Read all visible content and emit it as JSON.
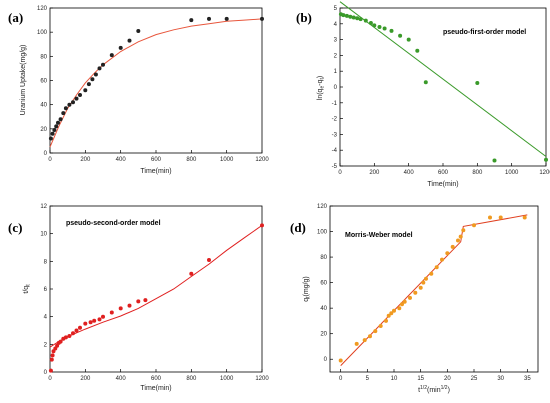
{
  "chart_data": [
    {
      "panel_label": "(a)",
      "type": "scatter",
      "xlabel": "Time(min)",
      "ylabel": "Uranium Uptake(mg/g)",
      "xlim": [
        0,
        1200
      ],
      "ylim": [
        0,
        120
      ],
      "xticks": [
        "0",
        "200",
        "400",
        "600",
        "800",
        "1000",
        "1200"
      ],
      "yticks": [
        "0",
        "20",
        "40",
        "60",
        "80",
        "100",
        "120"
      ],
      "model_label": "",
      "point_color": "#222222",
      "line_color": "#e8563c",
      "points": [
        [
          5,
          12
        ],
        [
          15,
          16
        ],
        [
          25,
          19
        ],
        [
          35,
          22
        ],
        [
          45,
          25
        ],
        [
          60,
          28
        ],
        [
          75,
          33
        ],
        [
          90,
          37
        ],
        [
          110,
          40
        ],
        [
          130,
          42
        ],
        [
          150,
          45
        ],
        [
          170,
          48
        ],
        [
          200,
          52
        ],
        [
          220,
          57
        ],
        [
          240,
          61
        ],
        [
          260,
          65
        ],
        [
          280,
          70
        ],
        [
          300,
          73
        ],
        [
          350,
          81
        ],
        [
          400,
          87
        ],
        [
          450,
          93
        ],
        [
          500,
          101
        ],
        [
          800,
          110
        ],
        [
          900,
          111
        ],
        [
          1000,
          111
        ],
        [
          1200,
          111
        ]
      ],
      "fit": [
        [
          0,
          5
        ],
        [
          50,
          22
        ],
        [
          100,
          37
        ],
        [
          150,
          48
        ],
        [
          200,
          58
        ],
        [
          250,
          66
        ],
        [
          300,
          73
        ],
        [
          400,
          84
        ],
        [
          500,
          92
        ],
        [
          600,
          98
        ],
        [
          700,
          102
        ],
        [
          800,
          105
        ],
        [
          900,
          107
        ],
        [
          1000,
          109
        ],
        [
          1100,
          110
        ],
        [
          1200,
          111
        ]
      ]
    },
    {
      "panel_label": "(b)",
      "type": "scatter",
      "xlabel": "Time(min)",
      "ylabel": "ln(qe-qt)",
      "xlim": [
        0,
        1200
      ],
      "ylim": [
        -5,
        5
      ],
      "xticks": [
        "0",
        "200",
        "400",
        "600",
        "800",
        "1000",
        "1200"
      ],
      "yticks": [
        "5",
        "4",
        "3",
        "2",
        "1",
        "0",
        "-1",
        "-2",
        "-3",
        "-4",
        "-5"
      ],
      "model_label": "pseudo-first-order model",
      "point_color": "#3a9a2a",
      "line_color": "#3a9a2a",
      "points": [
        [
          5,
          4.6
        ],
        [
          20,
          4.55
        ],
        [
          40,
          4.5
        ],
        [
          60,
          4.45
        ],
        [
          80,
          4.4
        ],
        [
          100,
          4.35
        ],
        [
          120,
          4.3
        ],
        [
          150,
          4.2
        ],
        [
          180,
          4.05
        ],
        [
          200,
          3.9
        ],
        [
          230,
          3.8
        ],
        [
          260,
          3.7
        ],
        [
          300,
          3.55
        ],
        [
          350,
          3.25
        ],
        [
          400,
          3.0
        ],
        [
          450,
          2.3
        ],
        [
          500,
          0.3
        ],
        [
          800,
          0.25
        ],
        [
          900,
          -4.65
        ],
        [
          1200,
          -4.6
        ]
      ],
      "fit": [
        [
          0,
          5.4
        ],
        [
          1200,
          -4.4
        ]
      ]
    },
    {
      "panel_label": "(c)",
      "type": "scatter",
      "xlabel": "Time(min)",
      "ylabel": "t/qt",
      "xlim": [
        0,
        1200
      ],
      "ylim": [
        0,
        12
      ],
      "xticks": [
        "0",
        "200",
        "400",
        "600",
        "800",
        "1000",
        "1200"
      ],
      "yticks": [
        "0",
        "2",
        "4",
        "6",
        "8",
        "10",
        "12"
      ],
      "model_label": "pseudo-second-order model",
      "point_color": "#e02020",
      "line_color": "#e02020",
      "points": [
        [
          5,
          0.1
        ],
        [
          10,
          0.9
        ],
        [
          15,
          1.2
        ],
        [
          20,
          1.5
        ],
        [
          30,
          1.7
        ],
        [
          40,
          1.9
        ],
        [
          50,
          2.1
        ],
        [
          60,
          2.2
        ],
        [
          75,
          2.4
        ],
        [
          90,
          2.5
        ],
        [
          110,
          2.6
        ],
        [
          130,
          2.8
        ],
        [
          150,
          3.0
        ],
        [
          170,
          3.2
        ],
        [
          200,
          3.5
        ],
        [
          230,
          3.6
        ],
        [
          250,
          3.7
        ],
        [
          280,
          3.8
        ],
        [
          300,
          4.0
        ],
        [
          350,
          4.3
        ],
        [
          400,
          4.6
        ],
        [
          450,
          4.8
        ],
        [
          500,
          5.1
        ],
        [
          540,
          5.2
        ],
        [
          800,
          7.1
        ],
        [
          900,
          8.1
        ],
        [
          1200,
          10.6
        ]
      ],
      "fit": [
        [
          0,
          1.8
        ],
        [
          50,
          2.2
        ],
        [
          100,
          2.55
        ],
        [
          200,
          3.1
        ],
        [
          300,
          3.6
        ],
        [
          400,
          4.05
        ],
        [
          500,
          4.6
        ],
        [
          600,
          5.3
        ],
        [
          700,
          6.0
        ],
        [
          800,
          6.9
        ],
        [
          900,
          7.8
        ],
        [
          1000,
          8.8
        ],
        [
          1100,
          9.7
        ],
        [
          1200,
          10.6
        ]
      ]
    },
    {
      "panel_label": "(d)",
      "type": "scatter",
      "xlabel": "t1/2(min1/2)",
      "ylabel": "qt(mg/g)",
      "xlim": [
        -2,
        37
      ],
      "ylim": [
        -10,
        120
      ],
      "xticks": [
        "0",
        "5",
        "10",
        "15",
        "20",
        "25",
        "30",
        "35"
      ],
      "yticks": [
        "0",
        "20",
        "40",
        "60",
        "80",
        "100",
        "120"
      ],
      "model_label": "Morris-Weber model",
      "point_color": "#f09a20",
      "line_color": "#e04020",
      "points": [
        [
          0,
          -1
        ],
        [
          3,
          12
        ],
        [
          4.5,
          15
        ],
        [
          5.5,
          18
        ],
        [
          6.5,
          22
        ],
        [
          7.5,
          26
        ],
        [
          8.5,
          30
        ],
        [
          9,
          34
        ],
        [
          9.5,
          36
        ],
        [
          10,
          38
        ],
        [
          11,
          40
        ],
        [
          11.5,
          43
        ],
        [
          12,
          45
        ],
        [
          13,
          48
        ],
        [
          14,
          52
        ],
        [
          15,
          56
        ],
        [
          15.5,
          60
        ],
        [
          16,
          63
        ],
        [
          17,
          67
        ],
        [
          18,
          72
        ],
        [
          19,
          78
        ],
        [
          20,
          83
        ],
        [
          21,
          88
        ],
        [
          22,
          93
        ],
        [
          22.5,
          96
        ],
        [
          23,
          101
        ],
        [
          25,
          105
        ],
        [
          28,
          111
        ],
        [
          30,
          111
        ],
        [
          34.5,
          111
        ]
      ],
      "fit": [
        [
          0,
          -5
        ],
        [
          22.5,
          92
        ],
        [
          23,
          104
        ],
        [
          35,
          113
        ]
      ]
    }
  ]
}
